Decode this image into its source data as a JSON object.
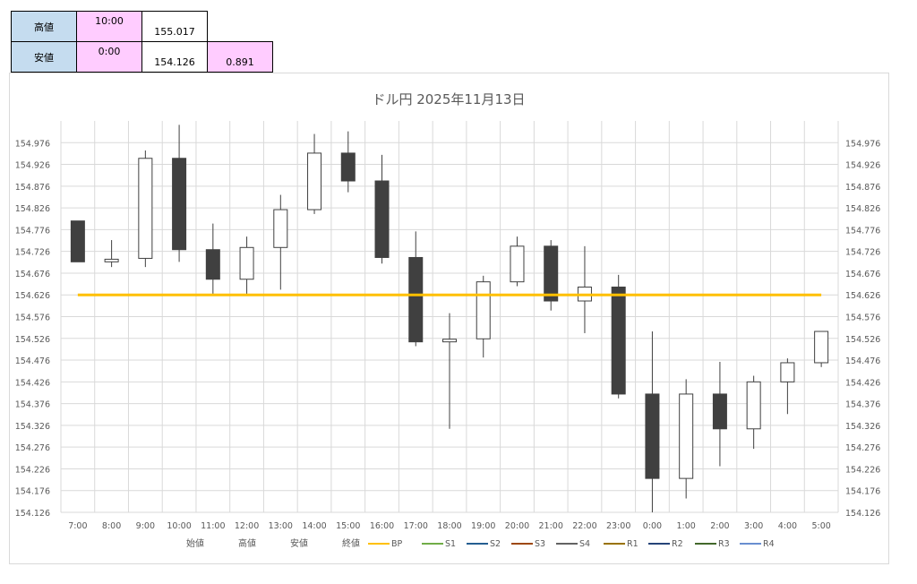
{
  "summary": {
    "high_label": "高値",
    "high_time": "10:00",
    "high_price": "155.017",
    "low_label": "安値",
    "low_time": "0:00",
    "low_price": "154.126",
    "range": "0.891"
  },
  "chart_data": {
    "type": "candlestick",
    "title": "ドル円 2025年11月13日",
    "xlabel": "",
    "ylabel": "",
    "ylim": [
      154.126,
      155.026
    ],
    "yticks": [
      "154.126",
      "154.176",
      "154.226",
      "154.276",
      "154.326",
      "154.376",
      "154.426",
      "154.476",
      "154.526",
      "154.576",
      "154.626",
      "154.676",
      "154.726",
      "154.776",
      "154.826",
      "154.876",
      "154.926",
      "154.976"
    ],
    "grid": true,
    "legend_position": "bottom",
    "categories": [
      "7:00",
      "8:00",
      "9:00",
      "10:00",
      "11:00",
      "12:00",
      "13:00",
      "14:00",
      "15:00",
      "16:00",
      "17:00",
      "18:00",
      "19:00",
      "20:00",
      "21:00",
      "22:00",
      "23:00",
      "0:00",
      "1:00",
      "2:00",
      "3:00",
      "4:00",
      "5:00"
    ],
    "open": [
      154.796,
      154.702,
      154.71,
      154.94,
      154.73,
      154.662,
      154.735,
      154.822,
      154.952,
      154.888,
      154.712,
      154.518,
      154.525,
      154.656,
      154.738,
      154.612,
      154.644,
      154.398,
      154.204,
      154.398,
      154.318,
      154.426,
      154.47
    ],
    "high": [
      154.796,
      154.752,
      154.958,
      155.017,
      154.79,
      154.76,
      154.856,
      154.996,
      155.002,
      154.948,
      154.772,
      154.584,
      154.67,
      154.76,
      154.752,
      154.738,
      154.672,
      154.542,
      154.432,
      154.472,
      154.44,
      154.48,
      154.542
    ],
    "low": [
      154.702,
      154.69,
      154.69,
      154.702,
      154.626,
      154.628,
      154.638,
      154.812,
      154.862,
      154.698,
      154.508,
      154.318,
      154.482,
      154.646,
      154.59,
      154.538,
      154.388,
      154.126,
      154.158,
      154.232,
      154.272,
      154.352,
      154.46
    ],
    "close": [
      154.702,
      154.708,
      154.94,
      154.73,
      154.662,
      154.735,
      154.822,
      154.952,
      154.888,
      154.712,
      154.518,
      154.524,
      154.656,
      154.738,
      154.612,
      154.644,
      154.398,
      154.204,
      154.398,
      154.318,
      154.426,
      154.47,
      154.542
    ],
    "bp": 154.626,
    "colors": {
      "up": "#ffffff",
      "down": "#404040",
      "bp": "#ffc000"
    },
    "legend": [
      {
        "label": "始値",
        "color": "",
        "marker": "none"
      },
      {
        "label": "高値",
        "color": "",
        "marker": "none"
      },
      {
        "label": "安値",
        "color": "",
        "marker": "none"
      },
      {
        "label": "終値",
        "color": "",
        "marker": "none"
      },
      {
        "label": "BP",
        "color": "#ffc000",
        "marker": "line"
      },
      {
        "label": "S1",
        "color": "#70ad47",
        "marker": "line"
      },
      {
        "label": "S2",
        "color": "#255e91",
        "marker": "line"
      },
      {
        "label": "S3",
        "color": "#9e480e",
        "marker": "line"
      },
      {
        "label": "S4",
        "color": "#636363",
        "marker": "line"
      },
      {
        "label": "R1",
        "color": "#997300",
        "marker": "line"
      },
      {
        "label": "R2",
        "color": "#264478",
        "marker": "line"
      },
      {
        "label": "R3",
        "color": "#43682b",
        "marker": "line"
      },
      {
        "label": "R4",
        "color": "#698ed0",
        "marker": "line"
      }
    ]
  }
}
